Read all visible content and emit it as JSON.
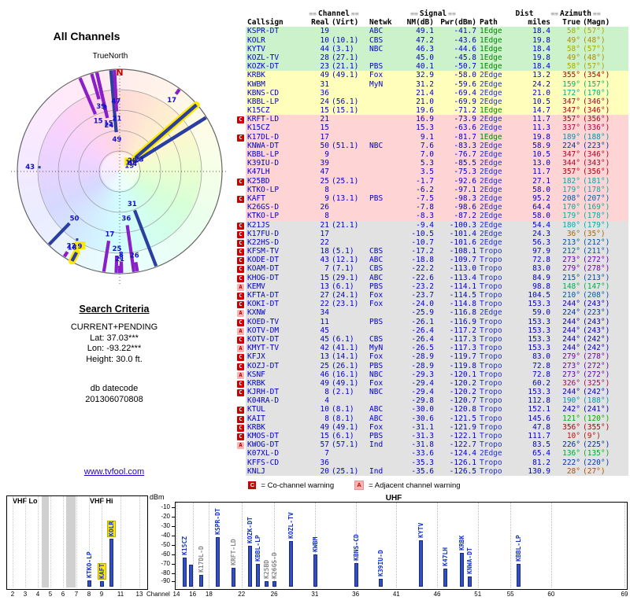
{
  "polar": {
    "title": "All Channels",
    "north_label": "TrueNorth",
    "n": "N"
  },
  "search": {
    "title": "Search Criteria",
    "lines": [
      "CURRENT+PENDING",
      "Lat: 37.03***",
      "Lon: -93.22***",
      "Height: 30.0 ft."
    ],
    "datecode_label": "db datecode",
    "datecode": "201306070808"
  },
  "link": "www.tvfool.com",
  "table": {
    "deco": "≡≡",
    "h1": {
      "channel": "Channel",
      "signal": "Signal",
      "dist": "Dist",
      "azimuth": "Azimuth"
    },
    "h2": {
      "callsign": "Callsign",
      "real": "Real",
      "virt": "(Virt)",
      "netwk": "Netwk",
      "nm": "NM(dB)",
      "pwr": "Pwr(dBm)",
      "path": "Path",
      "miles": "miles",
      "true": "True",
      "magn": "(Magn)"
    }
  },
  "legend": {
    "c": "C",
    "c_text": "= Co-channel warning",
    "a": "A",
    "a_text": "= Adjacent channel warning"
  },
  "axis": {
    "dbm": "dBm",
    "channel": "Channel",
    "vhf_lo": "VHF Lo",
    "vhf_hi": "VHF Hi",
    "uhf": "UHF"
  },
  "colors": {
    "data_text": "#0000cc",
    "path_1edge": "#008800",
    "path_other": "#2233cc",
    "row_green": "#ccf2cc",
    "row_yellow": "#ffffbb",
    "row_pink": "#ffd4d4",
    "row_gray": "#e2e2e2",
    "warn_c_bg": "#cc0000",
    "warn_a_bg": "#ffb0b0",
    "bar_navy": "#2a3f9f",
    "bar_purple": "#8a1fc8",
    "highlight": "#ffe800",
    "link": "#2200cc"
  },
  "chart_data": [
    {
      "type": "table",
      "title": "channel list",
      "columns": [
        "Warn",
        "Callsign",
        "Real",
        "(Virt)",
        "Netwk",
        "NM(dB)",
        "Pwr(dBm)",
        "Path",
        "miles",
        "True",
        "(Magn)"
      ],
      "rows": [
        [
          "",
          "KSPR-DT",
          19,
          "",
          "ABC",
          49.1,
          -41.7,
          "1Edge",
          18.4,
          58,
          57
        ],
        [
          "",
          "KOLR",
          10,
          "(10.1)",
          "CBS",
          47.2,
          -43.6,
          "1Edge",
          19.8,
          49,
          48
        ],
        [
          "",
          "KYTV",
          44,
          "(3.1)",
          "NBC",
          46.3,
          -44.6,
          "1Edge",
          18.4,
          58,
          57
        ],
        [
          "",
          "KOZL-TV",
          28,
          "(27.1)",
          "",
          45.0,
          -45.8,
          "1Edge",
          19.8,
          49,
          48
        ],
        [
          "",
          "KOZK-DT",
          23,
          "(21.1)",
          "PBS",
          40.1,
          -50.7,
          "1Edge",
          18.4,
          58,
          57
        ],
        [
          "",
          "KRBK",
          49,
          "(49.1)",
          "Fox",
          32.9,
          -58.0,
          "2Edge",
          13.2,
          355,
          354
        ],
        [
          "",
          "KWBM",
          31,
          "",
          "MyN",
          31.2,
          -59.6,
          "2Edge",
          24.2,
          159,
          157
        ],
        [
          "",
          "KBNS-CD",
          36,
          "",
          "",
          21.4,
          -69.4,
          "2Edge",
          21.0,
          172,
          170
        ],
        [
          "",
          "KBBL-LP",
          24,
          "(56.1)",
          "",
          21.0,
          -69.9,
          "2Edge",
          10.5,
          347,
          346
        ],
        [
          "",
          "K15CZ",
          15,
          "(15.1)",
          "",
          19.6,
          -71.2,
          "1Edge",
          14.7,
          347,
          346
        ],
        [
          "C",
          "KRFT-LD",
          21,
          "",
          "",
          16.9,
          -73.9,
          "2Edge",
          11.7,
          357,
          356
        ],
        [
          "",
          "K15CZ",
          15,
          "",
          "",
          15.3,
          -63.6,
          "2Edge",
          11.3,
          337,
          336
        ],
        [
          "C",
          "K17DL-D",
          17,
          "",
          "",
          9.1,
          -81.7,
          "1Edge",
          19.8,
          189,
          188
        ],
        [
          "",
          "KNWA-DT",
          50,
          "(51.1)",
          "NBC",
          7.6,
          -83.3,
          "2Edge",
          58.9,
          224,
          223
        ],
        [
          "",
          "KBBL-LP",
          9,
          "",
          "",
          7.0,
          -76.7,
          "2Edge",
          10.5,
          347,
          346
        ],
        [
          "",
          "K39IU-D",
          39,
          "",
          "",
          5.3,
          -85.5,
          "2Edge",
          13.0,
          344,
          343
        ],
        [
          "",
          "K47LH",
          47,
          "",
          "",
          3.5,
          -75.3,
          "2Edge",
          11.7,
          357,
          356
        ],
        [
          "C",
          "K25BD",
          25,
          "(25.1)",
          "",
          -1.7,
          -92.6,
          "2Edge",
          27.1,
          182,
          181
        ],
        [
          "",
          "KTKO-LP",
          8,
          "",
          "",
          -6.2,
          -97.1,
          "2Edge",
          58.0,
          179,
          178
        ],
        [
          "C",
          "KAFT",
          9,
          "(13.1)",
          "PBS",
          -7.5,
          -98.3,
          "2Edge",
          95.2,
          208,
          207
        ],
        [
          "",
          "K26GS-D",
          26,
          "",
          "",
          -7.8,
          -98.6,
          "2Edge",
          64.4,
          170,
          169
        ],
        [
          "",
          "KTKO-LP",
          8,
          "",
          "",
          -8.3,
          -87.2,
          "2Edge",
          58.0,
          179,
          178
        ],
        [
          "C",
          "K21JS",
          21,
          "(21.1)",
          "",
          -9.4,
          -100.3,
          "2Edge",
          54.4,
          180,
          179
        ],
        [
          "C",
          "K17FU-D",
          17,
          "",
          "",
          -10.5,
          -101.4,
          "2Edge",
          24.3,
          36,
          35
        ],
        [
          "C",
          "K22HS-D",
          22,
          "",
          "",
          -10.7,
          -101.6,
          "2Edge",
          56.3,
          213,
          212
        ],
        [
          "C",
          "KFSM-TV",
          18,
          "(5.1)",
          "CBS",
          -17.2,
          -108.1,
          "Tropo",
          97.9,
          212,
          211
        ],
        [
          "C",
          "KODE-DT",
          43,
          "(12.1)",
          "ABC",
          -18.8,
          -109.7,
          "Tropo",
          72.8,
          273,
          272
        ],
        [
          "C",
          "KOAM-DT",
          7,
          "(7.1)",
          "CBS",
          -22.2,
          -113.0,
          "Tropo",
          83.0,
          279,
          278
        ],
        [
          "C",
          "KHOG-DT",
          15,
          "(29.1)",
          "ABC",
          -22.6,
          -113.4,
          "Tropo",
          84.9,
          215,
          213
        ],
        [
          "A",
          "KEMV",
          13,
          "(6.1)",
          "PBS",
          -23.2,
          -114.1,
          "Tropo",
          98.8,
          148,
          147
        ],
        [
          "C",
          "KFTA-DT",
          27,
          "(24.1)",
          "Fox",
          -23.7,
          -114.5,
          "Tropo",
          104.5,
          210,
          208
        ],
        [
          "C",
          "KOKI-DT",
          22,
          "(23.1)",
          "Fox",
          -24.0,
          -114.8,
          "Tropo",
          153.3,
          244,
          243
        ],
        [
          "A",
          "KXNW",
          34,
          "",
          "",
          -25.9,
          -116.8,
          "2Edge",
          59.0,
          224,
          223
        ],
        [
          "C",
          "KOED-TV",
          11,
          "",
          "PBS",
          -26.1,
          -116.9,
          "Tropo",
          153.3,
          244,
          243
        ],
        [
          "A",
          "KOTV-DM",
          45,
          "",
          "",
          -26.4,
          -117.2,
          "Tropo",
          153.3,
          244,
          243
        ],
        [
          "C",
          "KOTV-DT",
          45,
          "(6.1)",
          "CBS",
          -26.4,
          -117.3,
          "Tropo",
          153.3,
          244,
          242
        ],
        [
          "A",
          "KMYT-TV",
          42,
          "(41.1)",
          "MyN",
          -26.5,
          -117.3,
          "Tropo",
          153.3,
          244,
          242
        ],
        [
          "C",
          "KFJX",
          13,
          "(14.1)",
          "Fox",
          -28.9,
          -119.7,
          "Tropo",
          83.0,
          279,
          278
        ],
        [
          "C",
          "KOZJ-DT",
          25,
          "(26.1)",
          "PBS",
          -28.9,
          -119.8,
          "Tropo",
          72.8,
          273,
          272
        ],
        [
          "A",
          "KSNF",
          46,
          "(16.1)",
          "NBC",
          -29.3,
          -120.1,
          "Tropo",
          72.8,
          273,
          272
        ],
        [
          "C",
          "KRBK",
          49,
          "(49.1)",
          "Fox",
          -29.4,
          -120.2,
          "Tropo",
          60.2,
          326,
          325
        ],
        [
          "C",
          "KJRH-DT",
          8,
          "(2.1)",
          "NBC",
          -29.4,
          -120.2,
          "Tropo",
          153.3,
          244,
          242
        ],
        [
          "",
          "K04RA-D",
          4,
          "",
          "",
          -29.8,
          -120.7,
          "Tropo",
          112.8,
          190,
          188
        ],
        [
          "C",
          "KTUL",
          10,
          "(8.1)",
          "ABC",
          -30.0,
          -120.8,
          "Tropo",
          152.1,
          242,
          241
        ],
        [
          "C",
          "KAIT",
          8,
          "(8.1)",
          "ABC",
          -30.6,
          -121.5,
          "Tropo",
          145.6,
          121,
          120
        ],
        [
          "C",
          "KRBK",
          49,
          "(49.1)",
          "Fox",
          -31.1,
          -121.9,
          "Tropo",
          47.8,
          356,
          355
        ],
        [
          "C",
          "KMOS-DT",
          15,
          "(6.1)",
          "PBS",
          -31.3,
          -122.1,
          "Tropo",
          111.7,
          10,
          9
        ],
        [
          "A",
          "KWOG-DT",
          57,
          "(57.1)",
          "Ind",
          -31.8,
          -122.7,
          "Tropo",
          83.5,
          226,
          225
        ],
        [
          "",
          "K07XL-D",
          7,
          "",
          "",
          -33.6,
          -124.4,
          "2Edge",
          65.4,
          136,
          135
        ],
        [
          "",
          "KFFS-CD",
          36,
          "",
          "",
          -35.3,
          -126.1,
          "Tropo",
          81.2,
          222,
          220
        ],
        [
          "",
          "KNLJ",
          20,
          "(25.1)",
          "Ind",
          -35.6,
          -126.5,
          "Tropo",
          130.9,
          28,
          27
        ]
      ]
    },
    {
      "type": "bar",
      "layout": "polar",
      "title": "All Channels",
      "spokes": [
        {
          "ch": 19,
          "az": 58,
          "nm": 49.1,
          "c": "n"
        },
        {
          "ch": 10,
          "az": 49,
          "nm": 47.2,
          "c": "n",
          "hl": true
        },
        {
          "ch": 44,
          "az": 58,
          "nm": 46.3,
          "c": "n"
        },
        {
          "ch": 28,
          "az": 49,
          "nm": 45.0,
          "c": "n"
        },
        {
          "ch": 23,
          "az": 58,
          "nm": 40.1,
          "c": "n"
        },
        {
          "ch": 49,
          "az": 355,
          "nm": 32.9,
          "c": "n"
        },
        {
          "ch": 31,
          "az": 159,
          "nm": 31.2,
          "c": "n"
        },
        {
          "ch": 36,
          "az": 172,
          "nm": 21.4,
          "c": "p"
        },
        {
          "ch": 24,
          "az": 347,
          "nm": 21.0,
          "c": "p"
        },
        {
          "ch": 15,
          "az": 347,
          "nm": 19.6,
          "c": "p"
        },
        {
          "ch": 21,
          "az": 357,
          "nm": 16.9,
          "c": "p"
        },
        {
          "ch": 15,
          "az": 337,
          "nm": 15.3,
          "c": "p"
        },
        {
          "ch": 17,
          "az": 189,
          "nm": 9.1,
          "c": "p"
        },
        {
          "ch": 50,
          "az": 224,
          "nm": 7.6,
          "c": "n"
        },
        {
          "ch": 9,
          "az": 347,
          "nm": 7.0,
          "c": "p"
        },
        {
          "ch": 39,
          "az": 344,
          "nm": 5.3,
          "c": "p"
        },
        {
          "ch": 47,
          "az": 357,
          "nm": 3.5,
          "c": "p"
        },
        {
          "ch": 25,
          "az": 182,
          "nm": -1.7,
          "c": "p"
        },
        {
          "ch": 8,
          "az": 179,
          "nm": -6.2,
          "c": "p"
        },
        {
          "ch": 9,
          "az": 208,
          "nm": -7.5,
          "c": "n",
          "hl": true
        },
        {
          "ch": 26,
          "az": 170,
          "nm": -7.8,
          "c": "p"
        },
        {
          "ch": 8,
          "az": 179,
          "nm": -8.3,
          "c": "p"
        },
        {
          "ch": 21,
          "az": 180,
          "nm": -9.4,
          "c": "p"
        },
        {
          "ch": 17,
          "az": 36,
          "nm": -10.5,
          "c": "p"
        },
        {
          "ch": 22,
          "az": 213,
          "nm": -10.7,
          "c": "p"
        }
      ],
      "dots": [
        {
          "ch": 18,
          "az": 212
        },
        {
          "ch": 43,
          "az": 273
        }
      ]
    },
    {
      "type": "bar",
      "title": "VHF",
      "xticks": [
        2,
        3,
        4,
        5,
        6,
        7,
        8,
        9,
        11,
        13
      ],
      "bars": [
        {
          "ch": 8,
          "call": "KTKO-LP",
          "pwr": -87.2
        },
        {
          "ch": 9,
          "call": "KAFT",
          "pwr": -98.3,
          "hl": true
        },
        {
          "ch": 10,
          "call": "KOLR",
          "pwr": -43.6,
          "hl": true
        }
      ]
    },
    {
      "type": "bar",
      "title": "UHF",
      "ylabel": "dBm",
      "yticks": [
        -10,
        -20,
        -30,
        -40,
        -50,
        -60,
        -70,
        -80,
        -90
      ],
      "xticks": [
        14,
        16,
        18,
        22,
        26,
        31,
        36,
        41,
        46,
        51,
        55,
        60,
        69
      ],
      "bars": [
        {
          "ch": 15,
          "call": "K15CZ",
          "pwr": -63.6
        },
        {
          "ch": 15.7,
          "call": "",
          "pwr": -71.2
        },
        {
          "ch": 17,
          "call": "K17DL-D",
          "pwr": -81.7,
          "gray": true
        },
        {
          "ch": 19,
          "call": "KSPR-DT",
          "pwr": -41.7
        },
        {
          "ch": 21,
          "call": "KRFT-LD",
          "pwr": -73.9,
          "gray": true
        },
        {
          "ch": 23,
          "call": "KOZK-DT",
          "pwr": -50.7
        },
        {
          "ch": 24,
          "call": "KBBL-LP",
          "pwr": -69.9
        },
        {
          "ch": 25,
          "call": "K25BD",
          "pwr": -92.6,
          "gray": true
        },
        {
          "ch": 26,
          "call": "K26GS-D",
          "pwr": -98.6,
          "gray": true
        },
        {
          "ch": 28,
          "call": "KOZL-TV",
          "pwr": -45.8
        },
        {
          "ch": 31,
          "call": "KWBM",
          "pwr": -59.6
        },
        {
          "ch": 36,
          "call": "KBNS-CD",
          "pwr": -69.4
        },
        {
          "ch": 39,
          "call": "K39IU-D",
          "pwr": -85.5
        },
        {
          "ch": 44,
          "call": "KYTV",
          "pwr": -44.6
        },
        {
          "ch": 47,
          "call": "K47LH",
          "pwr": -75.3
        },
        {
          "ch": 49,
          "call": "KRBK",
          "pwr": -58.0
        },
        {
          "ch": 50,
          "call": "KNWA-DT",
          "pwr": -83.3
        },
        {
          "ch": 56,
          "call": "KBBL-LP",
          "pwr": -69.9
        }
      ]
    }
  ]
}
